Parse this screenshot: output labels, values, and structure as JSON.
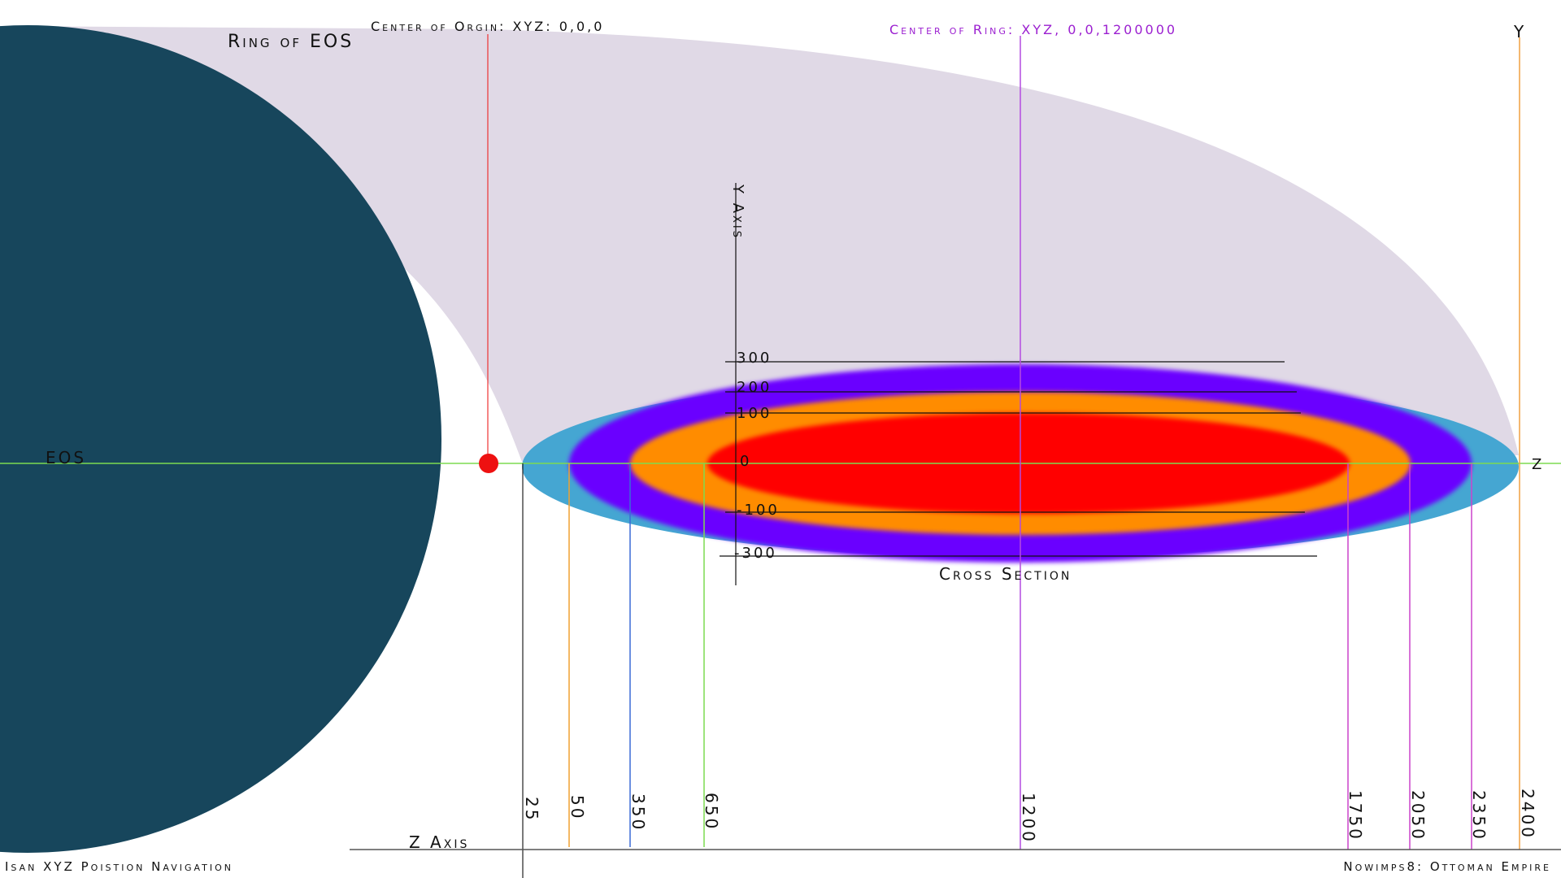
{
  "labels": {
    "ring_title": "Ring of EOS",
    "center_origin": "Center of Orgin: XYZ: 0,0,0",
    "center_ring": "Center of Ring: XYZ, 0,0,1200000",
    "y_top": "Y",
    "y_axis": "Y Axis",
    "z_right": "Z",
    "eos": "EOS",
    "cross_section": "Cross Section",
    "z_axis": "Z Axis",
    "footer_left": "Isan XYZ Poistion Navigation",
    "footer_right": "Nowimps8: Ottoman Empire"
  },
  "y_ticks": [
    "300",
    "200",
    "100",
    "0",
    "-100",
    "-300"
  ],
  "z_ticks": [
    "25",
    "50",
    "350",
    "650",
    "1200",
    "1750",
    "2050",
    "2350",
    "2400"
  ],
  "colors": {
    "planet": "#17465c",
    "halo": "#e0d9e6",
    "ring_outer": "#45a6d2",
    "ring_violet": "#6a00ff",
    "ring_orange": "#ff8c00",
    "ring_core": "#ff0000",
    "origin_dot": "#ee1111",
    "center_ring_text": "#9b1fd0"
  }
}
